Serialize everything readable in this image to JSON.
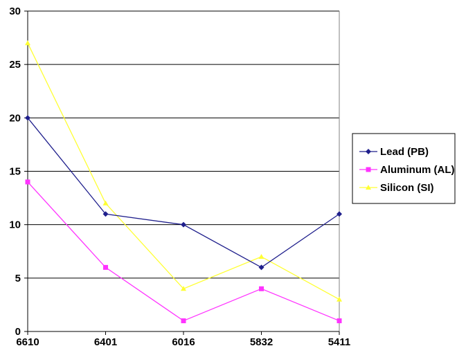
{
  "chart_data": {
    "type": "line",
    "title": "",
    "xlabel": "",
    "ylabel": "",
    "categories": [
      "6610",
      "6401",
      "6016",
      "5832",
      "5411"
    ],
    "ylim": [
      0,
      30
    ],
    "yticks": [
      0,
      5,
      10,
      15,
      20,
      25,
      30
    ],
    "grid": true,
    "legend_position": "right",
    "series": [
      {
        "name": "Lead (PB)",
        "color": "#1f1f8c",
        "marker": "diamond",
        "values": [
          20,
          11,
          10,
          6,
          11
        ]
      },
      {
        "name": "Aluminum (AL)",
        "color": "#ff33ff",
        "marker": "square",
        "values": [
          14,
          6,
          1,
          4,
          1
        ]
      },
      {
        "name": "Silicon (SI)",
        "color": "#ffff33",
        "marker": "triangle",
        "values": [
          27,
          12,
          4,
          7,
          3
        ]
      }
    ]
  }
}
